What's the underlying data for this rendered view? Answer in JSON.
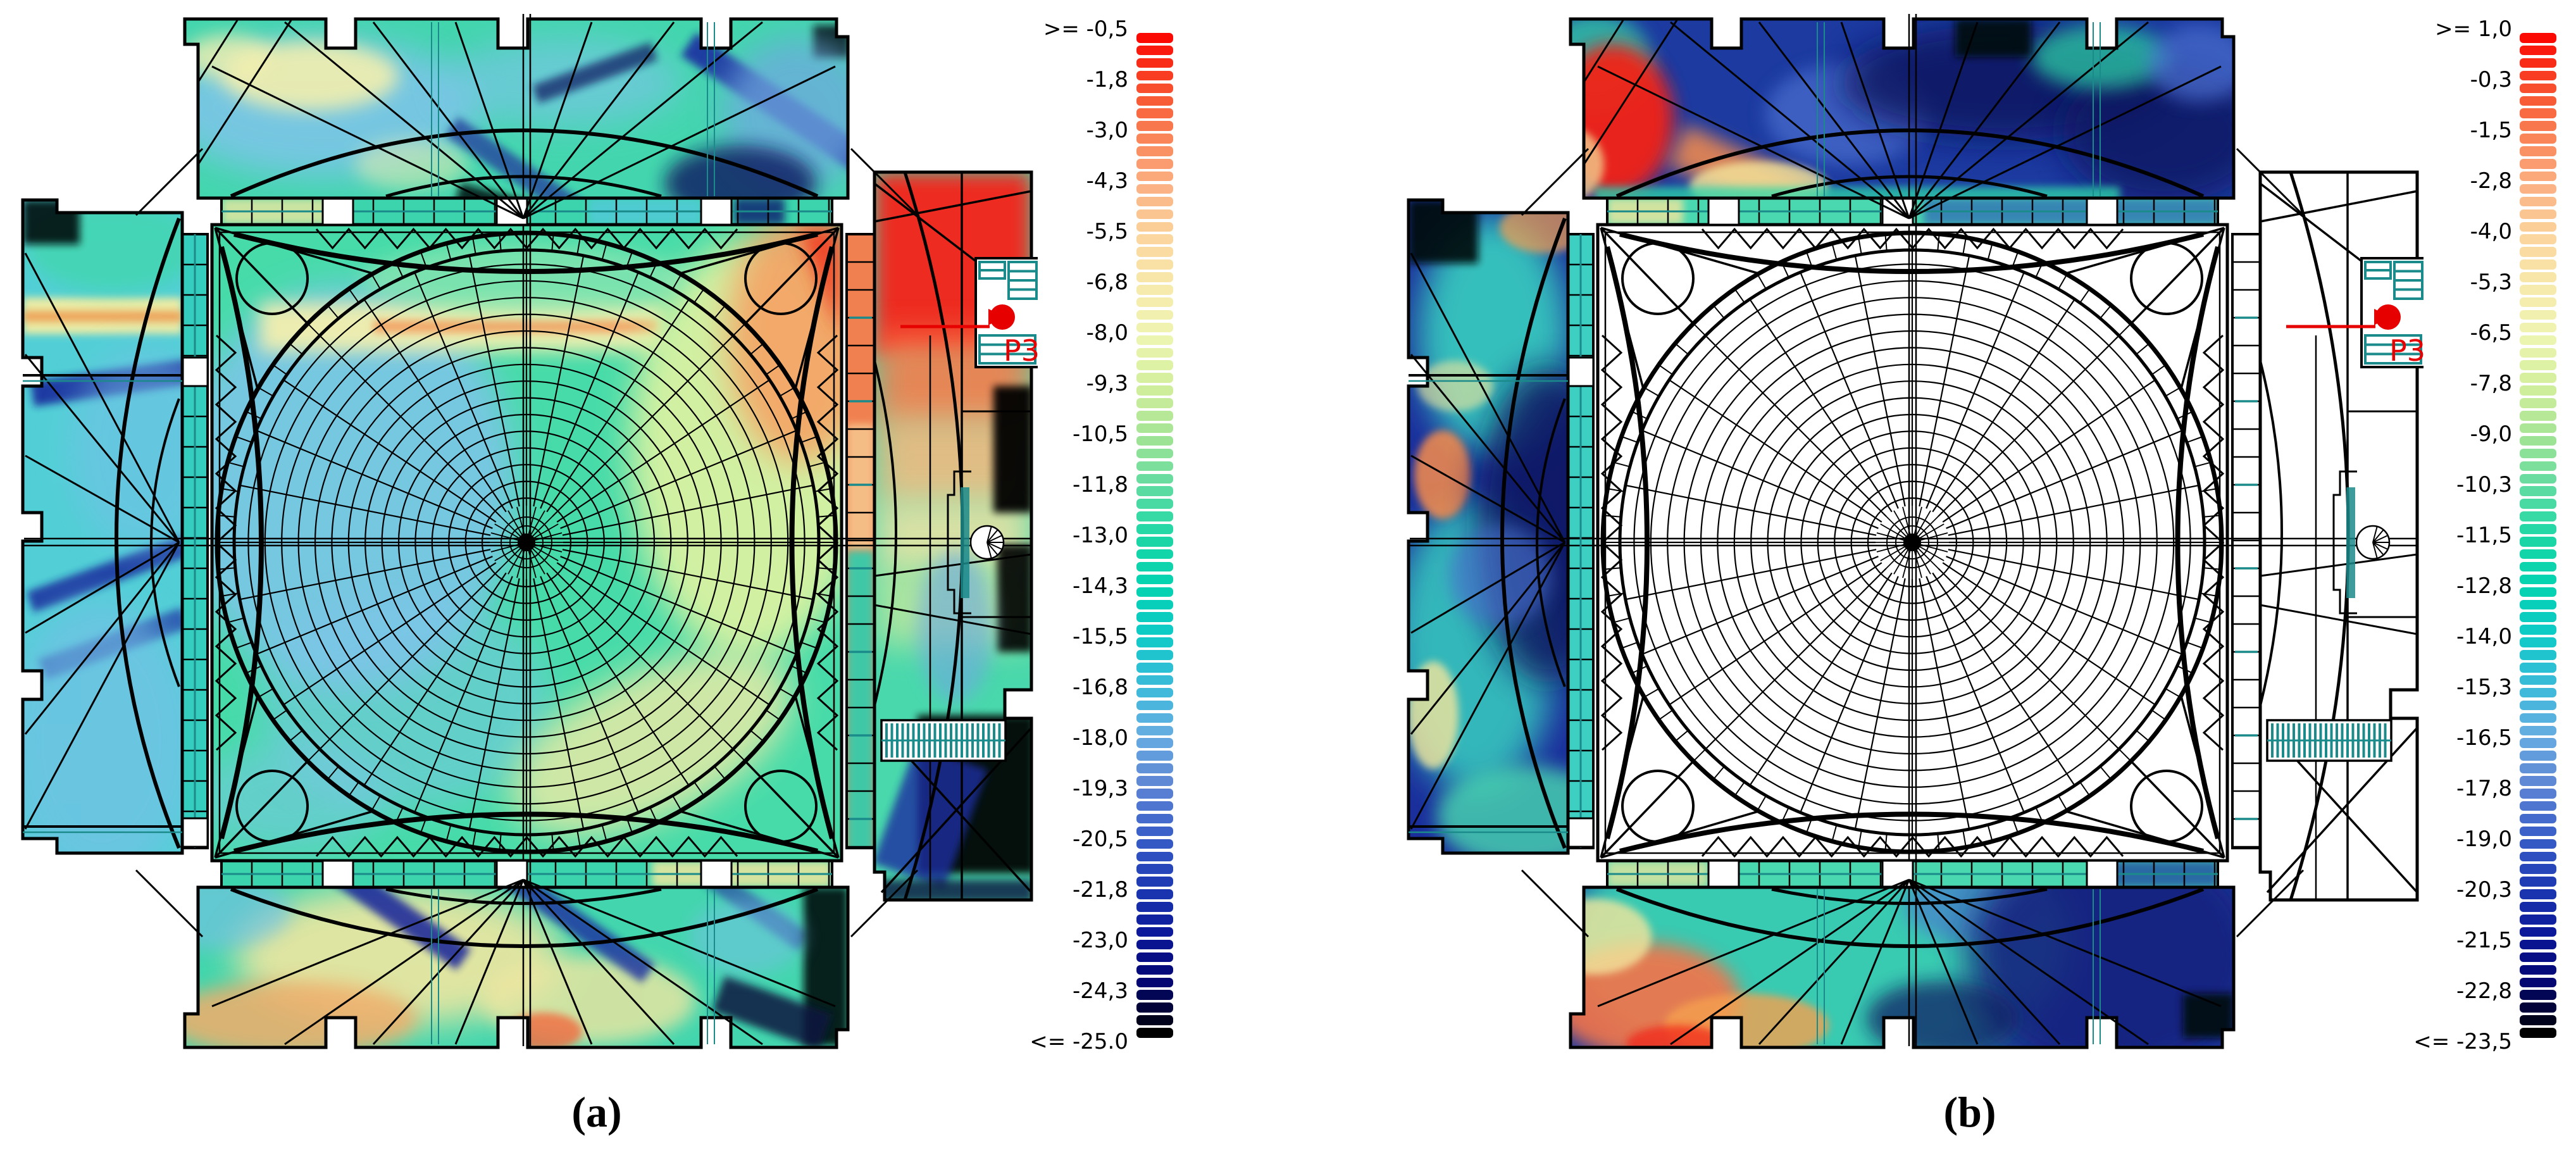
{
  "figure": {
    "background": "#ffffff",
    "description": "Two plan-view contour (heatmap) panels of a domed monument structure with colour legends"
  },
  "captions": {
    "a": "(a)",
    "b": "(b)"
  },
  "annotation": {
    "label": "P3",
    "color": "#e60000"
  },
  "palette": {
    "line_black": "#000000",
    "structural_teal": "#1b8a8a",
    "annotation_red": "#e60000",
    "background_white": "#ffffff"
  },
  "colormap": {
    "segments": 80,
    "stops": [
      "#fb0a04",
      "#f84d2c",
      "#f98457",
      "#fbb284",
      "#fbd59d",
      "#f7eaac",
      "#eef5b1",
      "#d3ef9d",
      "#a3e495",
      "#62dba1",
      "#1dd7a6",
      "#03d3b0",
      "#0ecac7",
      "#3abbd9",
      "#66ade2",
      "#5e85d4",
      "#3a60c8",
      "#1e3bb4",
      "#0c189a",
      "#040670",
      "#000000"
    ]
  },
  "legend_a": {
    "ticks": [
      ">= -0,5",
      "-1,8",
      "-3,0",
      "-4,3",
      "-5,5",
      "-6,8",
      "-8,0",
      "-9,3",
      "-10,5",
      "-11,8",
      "-13,0",
      "-14,3",
      "-15,5",
      "-16,8",
      "-18,0",
      "-19,3",
      "-20,5",
      "-21,8",
      "-23,0",
      "-24,3",
      "<= -25.0"
    ]
  },
  "legend_b": {
    "ticks": [
      ">= 1,0",
      "-0,3",
      "-1,5",
      "-2,8",
      "-4,0",
      "-5,3",
      "-6,5",
      "-7,8",
      "-9,0",
      "-10,3",
      "-11,5",
      "-12,8",
      "-14,0",
      "-15,3",
      "-16,5",
      "-17,8",
      "-19,0",
      "-20,3",
      "-21,5",
      "-22,8",
      "<= -23,5"
    ]
  },
  "chart_data": [
    {
      "type": "heatmap",
      "panel": "a",
      "title": "(a) contour plot over full plan (dome coloured)",
      "legend_position": "right",
      "legend_top_label": ">= -0,5",
      "legend_bottom_label": "<= -25.0",
      "legend_ticks": [
        -0.5,
        -1.8,
        -3.0,
        -4.3,
        -5.5,
        -6.8,
        -8.0,
        -9.3,
        -10.5,
        -11.8,
        -13.0,
        -14.3,
        -15.5,
        -16.8,
        -18.0,
        -19.3,
        -20.5,
        -21.8,
        -23.0,
        -24.3,
        -25.0
      ],
      "value_range": [
        -25.0,
        -0.5
      ],
      "regions": {
        "central_dome": "teal-green, pale-yellow horizontal band upper middle, light blue left half, yellow-green to orange toward right edge, red sliver top-right corner",
        "right_arm": "bright red top fading through orange/peach to teal, black patches along right edge and bottom-right",
        "left_arm": "cyan-teal with yellow/orange horizontal band near top, navy diagonal streaks, black top-left corner",
        "top_arm": "teal with sky-blue patches, pale-yellow patches left, navy streaks right, black bits",
        "bottom_arm": "teal with pale-yellow/orange patches, navy diagonal streaks, black right end"
      },
      "annotation_label": "P3"
    },
    {
      "type": "heatmap",
      "panel": "b",
      "title": "(b) contour plot on outer arms only (dome and right arm uncoloured)",
      "legend_position": "right",
      "legend_top_label": ">= 1,0",
      "legend_bottom_label": "<= -23,5",
      "legend_ticks": [
        1.0,
        -0.3,
        -1.5,
        -2.8,
        -4.0,
        -5.3,
        -6.5,
        -7.8,
        -9.0,
        -10.3,
        -11.5,
        -12.8,
        -14.0,
        -15.3,
        -16.5,
        -17.8,
        -19.0,
        -20.3,
        -21.5,
        -22.8,
        -23.5
      ],
      "value_range": [
        -23.5,
        1.0
      ],
      "regions": {
        "central_dome": "white / no data",
        "right_arm": "white / no data",
        "top_arm": "dark navy with red-orange blob at left, cyan strip along bottom edge, black near top",
        "left_arm": "dark navy with cyan-teal patches, small orange and yellow spots, black top-left corner",
        "bottom_arm": "teal centre-left with orange/yellow patches at left, navy right third, black bottom-right corner"
      },
      "annotation_label": "P3"
    }
  ]
}
